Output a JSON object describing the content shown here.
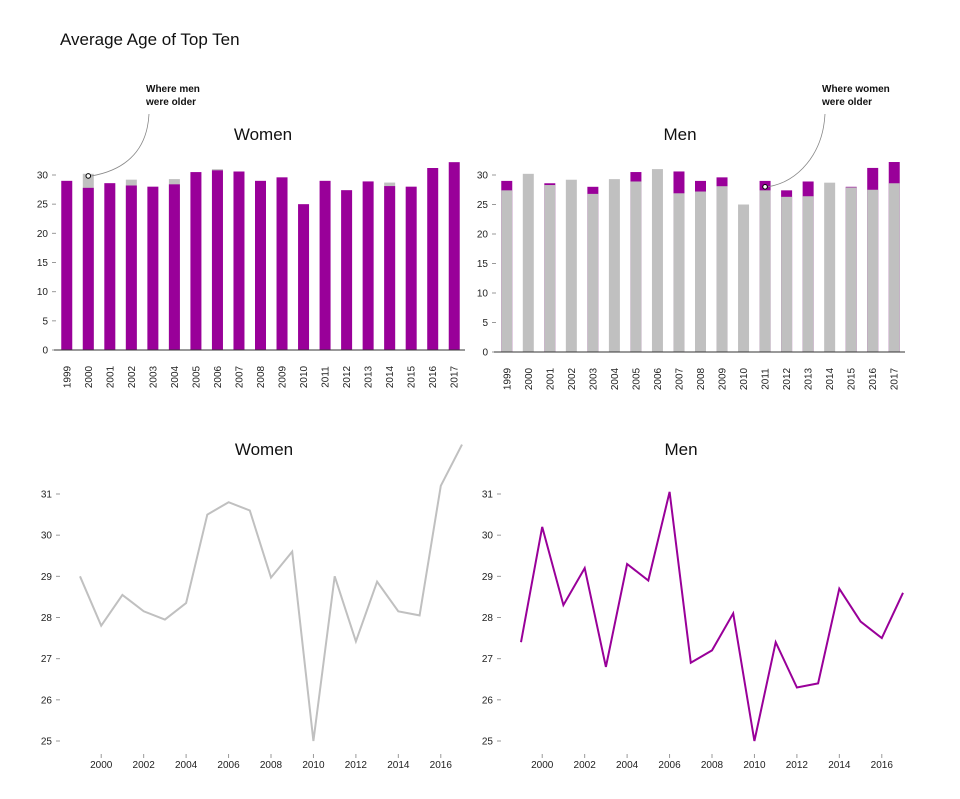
{
  "title": "Average Age of Top Ten",
  "colors": {
    "accent": "#990099",
    "gray": "#c0c0c0"
  },
  "chart_data": [
    {
      "type": "bar",
      "title": "Women",
      "categories": [
        "1999",
        "2000",
        "2001",
        "2002",
        "2003",
        "2004",
        "2005",
        "2006",
        "2007",
        "2008",
        "2009",
        "2010",
        "2011",
        "2012",
        "2013",
        "2014",
        "2015",
        "2016",
        "2017"
      ],
      "series": [
        {
          "values": [
            29.0,
            27.8,
            28.6,
            28.2,
            28.0,
            28.4,
            30.5,
            30.8,
            30.6,
            29.0,
            29.6,
            25.0,
            29.0,
            27.4,
            28.9,
            28.1,
            28.0,
            31.2,
            32.2
          ]
        },
        {
          "values": [
            27.4,
            30.2,
            28.3,
            29.2,
            26.8,
            29.3,
            28.9,
            31.0,
            26.9,
            27.2,
            28.1,
            25.0,
            27.4,
            26.3,
            26.4,
            28.7,
            27.9,
            27.5,
            28.6
          ]
        }
      ],
      "ylim": [
        0,
        33
      ],
      "yticks": [
        "0",
        "5",
        "10",
        "15",
        "20",
        "25",
        "30"
      ],
      "annotation": {
        "text_line1": "Where men",
        "text_line2": "were older",
        "category": "2000"
      }
    },
    {
      "type": "bar",
      "title": "Men",
      "categories": [
        "1999",
        "2000",
        "2001",
        "2002",
        "2003",
        "2004",
        "2005",
        "2006",
        "2007",
        "2008",
        "2009",
        "2010",
        "2011",
        "2012",
        "2013",
        "2014",
        "2015",
        "2016",
        "2017"
      ],
      "series": [
        {
          "values": [
            27.4,
            30.2,
            28.3,
            29.2,
            26.8,
            29.3,
            28.9,
            31.0,
            26.9,
            27.2,
            28.1,
            25.0,
            27.4,
            26.3,
            26.4,
            28.7,
            27.9,
            27.5,
            28.6
          ]
        },
        {
          "values": [
            29.0,
            27.8,
            28.6,
            28.2,
            28.0,
            28.4,
            30.5,
            30.8,
            30.6,
            29.0,
            29.6,
            25.0,
            29.0,
            27.4,
            28.9,
            28.1,
            28.0,
            31.2,
            32.2
          ]
        }
      ],
      "ylim": [
        0,
        33
      ],
      "yticks": [
        "0",
        "5",
        "10",
        "15",
        "20",
        "25",
        "30"
      ],
      "annotation": {
        "text_line1": "Where women",
        "text_line2": "were older",
        "category": "2011"
      }
    },
    {
      "type": "line",
      "title": "Women",
      "x": [
        1999,
        2000,
        2001,
        2002,
        2003,
        2004,
        2005,
        2006,
        2007,
        2008,
        2009,
        2010,
        2011,
        2012,
        2013,
        2014,
        2015,
        2016,
        2017
      ],
      "values": [
        29.0,
        27.8,
        28.55,
        28.15,
        27.95,
        28.35,
        30.5,
        30.8,
        30.6,
        28.97,
        29.6,
        25.0,
        29.0,
        27.42,
        28.87,
        28.15,
        28.05,
        31.2,
        32.2
      ],
      "ylim": [
        24.7,
        31.9
      ],
      "yticks": [
        "25",
        "26",
        "27",
        "28",
        "29",
        "30",
        "31"
      ],
      "xticks": [
        "2000",
        "2002",
        "2004",
        "2006",
        "2008",
        "2010",
        "2012",
        "2014",
        "2016"
      ]
    },
    {
      "type": "line",
      "title": "Men",
      "x": [
        1999,
        2000,
        2001,
        2002,
        2003,
        2004,
        2005,
        2006,
        2007,
        2008,
        2009,
        2010,
        2011,
        2012,
        2013,
        2014,
        2015,
        2016,
        2017
      ],
      "values": [
        27.4,
        30.2,
        28.3,
        29.2,
        26.8,
        29.3,
        28.9,
        31.05,
        26.9,
        27.2,
        28.1,
        25.0,
        27.4,
        26.3,
        26.4,
        28.7,
        27.9,
        27.5,
        28.6
      ],
      "ylim": [
        24.7,
        31.9
      ],
      "yticks": [
        "25",
        "26",
        "27",
        "28",
        "29",
        "30",
        "31"
      ],
      "xticks": [
        "2000",
        "2002",
        "2004",
        "2006",
        "2008",
        "2010",
        "2012",
        "2014",
        "2016"
      ]
    }
  ]
}
